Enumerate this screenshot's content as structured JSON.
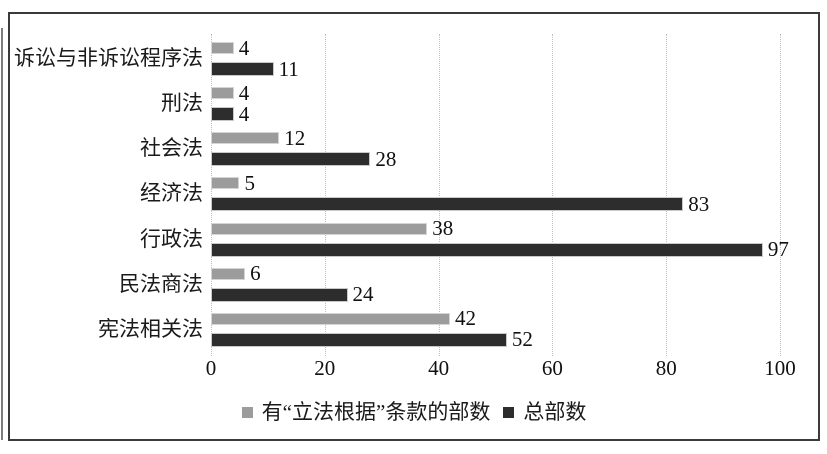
{
  "chart_data": {
    "type": "bar",
    "orientation": "horizontal",
    "title": "",
    "xlabel": "",
    "ylabel": "",
    "categories": [
      "诉讼与非诉讼程序法",
      "刑法",
      "社会法",
      "经济法",
      "行政法",
      "民法商法",
      "宪法相关法"
    ],
    "series": [
      {
        "name": "有“立法根据”条款的部数",
        "color": "#9c9c9c",
        "values": [
          4,
          4,
          12,
          5,
          38,
          6,
          42
        ]
      },
      {
        "name": "总部数",
        "color": "#2d2d2d",
        "values": [
          11,
          4,
          28,
          83,
          97,
          24,
          52
        ]
      }
    ],
    "x_ticks": [
      0,
      20,
      40,
      60,
      80,
      100
    ],
    "xlim": [
      0,
      100
    ],
    "grid": "vertical-dotted",
    "legend_position": "bottom"
  },
  "colors": {
    "series1_fill": "#9c9c9c",
    "series2_fill": "#2d2d2d",
    "gridline": "#bfbfbf",
    "frame_border": "#3a3a3a",
    "background": "#ffffff",
    "text": "#111111"
  }
}
